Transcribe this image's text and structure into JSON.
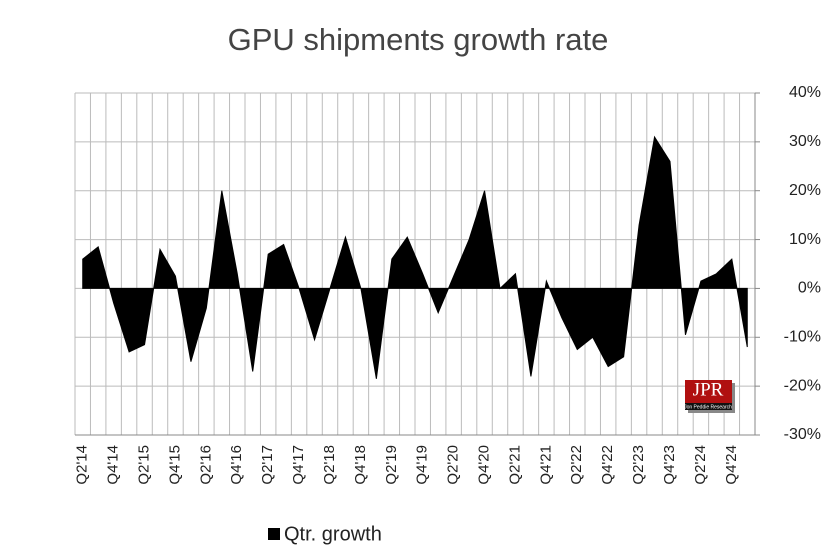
{
  "chart_data": {
    "type": "area",
    "title": "GPU shipments growth rate",
    "categories": [
      "Q2'14",
      null,
      "Q4'14",
      null,
      "Q2'15",
      null,
      "Q4'15",
      null,
      "Q2'16",
      null,
      "Q4'16",
      null,
      "Q2'17",
      null,
      "Q4'17",
      null,
      "Q2'18",
      null,
      "Q4'18",
      null,
      "Q2'19",
      null,
      "Q4'19",
      null,
      "Q2'20",
      null,
      "Q4'20",
      null,
      "Q2'21",
      null,
      "Q4'21",
      null,
      "Q2'22",
      null,
      "Q4'22",
      null,
      "Q2'23",
      null,
      "Q4'23",
      null,
      "Q2'24",
      null,
      "Q4'24",
      null
    ],
    "series": [
      {
        "name": "Qtr. growth",
        "color": "#000000",
        "values": [
          6,
          8.5,
          -3,
          -13,
          -11.5,
          8,
          2.5,
          -15,
          -4,
          20,
          3,
          -17,
          7,
          9,
          0,
          -10.5,
          0,
          10.5,
          0,
          -18.5,
          6,
          10.5,
          3,
          -5,
          2.5,
          10,
          20,
          0,
          3,
          -18,
          1.5,
          -6,
          -12.5,
          -10,
          -16,
          -14,
          13,
          31,
          26,
          -9.5,
          1.5,
          3,
          6,
          -12
        ]
      }
    ],
    "ylim": [
      -30,
      40
    ],
    "yticks": [
      {
        "value": -30,
        "label": "-30%"
      },
      {
        "value": -20,
        "label": "-20%"
      },
      {
        "value": -10,
        "label": "-10%"
      },
      {
        "value": 0,
        "label": "0%"
      },
      {
        "value": 10,
        "label": "10%"
      },
      {
        "value": 20,
        "label": "20%"
      },
      {
        "value": 30,
        "label": "30%"
      },
      {
        "value": 40,
        "label": "40%"
      }
    ],
    "grid": true,
    "legend": "bottom",
    "logo": {
      "text": "JPR",
      "subtitle": "Jon Peddie Research"
    }
  }
}
